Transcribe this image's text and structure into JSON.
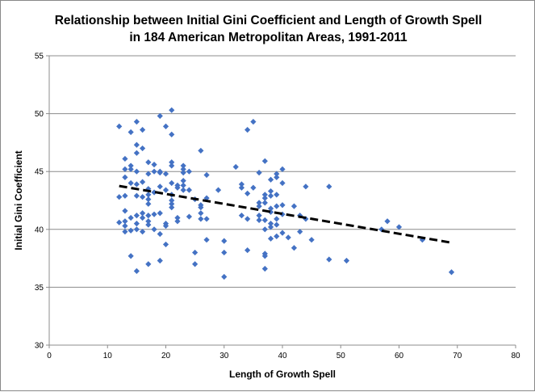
{
  "chart_data": {
    "type": "scatter",
    "title_line1": "Relationship between Initial Gini Coefficient and Length of Growth Spell",
    "title_line2": "in 184 American Metropolitan Areas, 1991-2011",
    "xlabel": "Length of Growth Spell",
    "ylabel": "Initial Gini Coefficient",
    "xlim": [
      0,
      80
    ],
    "ylim": [
      30,
      55
    ],
    "xticks": [
      "0",
      "10",
      "20",
      "30",
      "40",
      "50",
      "60",
      "70",
      "80"
    ],
    "yticks": [
      "30",
      "35",
      "40",
      "45",
      "50",
      "55"
    ],
    "grid": "horizontal",
    "marker_color": "#4472C4",
    "trendline": {
      "style": "dashed",
      "color": "#000000",
      "points": [
        [
          12,
          43.75
        ],
        [
          69,
          38.85
        ]
      ]
    },
    "points": [
      [
        12,
        48.9
      ],
      [
        12,
        42.8
      ],
      [
        12,
        40.6
      ],
      [
        13,
        46.1
      ],
      [
        13,
        45.2
      ],
      [
        13,
        44.5
      ],
      [
        13,
        42.9
      ],
      [
        13,
        41.6
      ],
      [
        13,
        40.7
      ],
      [
        13,
        40.3
      ],
      [
        13,
        39.8
      ],
      [
        14,
        48.4
      ],
      [
        14,
        45.5
      ],
      [
        14,
        45.2
      ],
      [
        14,
        44.0
      ],
      [
        14,
        41.0
      ],
      [
        14,
        37.7
      ],
      [
        14,
        39.9
      ],
      [
        15,
        49.3
      ],
      [
        15,
        47.3
      ],
      [
        15,
        46.6
      ],
      [
        15,
        45.0
      ],
      [
        15,
        43.9
      ],
      [
        15,
        42.9
      ],
      [
        15,
        41.2
      ],
      [
        15,
        40.5
      ],
      [
        15,
        40.0
      ],
      [
        15,
        36.4
      ],
      [
        16,
        48.6
      ],
      [
        16,
        47.0
      ],
      [
        16,
        44.1
      ],
      [
        16,
        42.8
      ],
      [
        16,
        41.4
      ],
      [
        16,
        41.0
      ],
      [
        16,
        39.8
      ],
      [
        17,
        45.8
      ],
      [
        17,
        44.8
      ],
      [
        17,
        43.5
      ],
      [
        17,
        43.0
      ],
      [
        17,
        42.6
      ],
      [
        17,
        42.2
      ],
      [
        17,
        41.2
      ],
      [
        17,
        40.7
      ],
      [
        17,
        40.4
      ],
      [
        17,
        37.0
      ],
      [
        18,
        45.6
      ],
      [
        18,
        45.0
      ],
      [
        18,
        43.2
      ],
      [
        18,
        41.3
      ],
      [
        18,
        40.0
      ],
      [
        19,
        49.8
      ],
      [
        19,
        45.0
      ],
      [
        19,
        44.9
      ],
      [
        19,
        43.7
      ],
      [
        19,
        41.4
      ],
      [
        19,
        39.6
      ],
      [
        19,
        37.3
      ],
      [
        20,
        48.9
      ],
      [
        20,
        44.8
      ],
      [
        20,
        43.4
      ],
      [
        20,
        40.5
      ],
      [
        20,
        40.3
      ],
      [
        20,
        38.7
      ],
      [
        21,
        50.3
      ],
      [
        21,
        48.2
      ],
      [
        21,
        45.8
      ],
      [
        21,
        45.5
      ],
      [
        21,
        44.0
      ],
      [
        21,
        43.0
      ],
      [
        21,
        42.5
      ],
      [
        21,
        42.2
      ],
      [
        21,
        41.9
      ],
      [
        22,
        43.8
      ],
      [
        22,
        43.6
      ],
      [
        22,
        41.0
      ],
      [
        22,
        40.7
      ],
      [
        23,
        45.5
      ],
      [
        23,
        45.2
      ],
      [
        23,
        44.9
      ],
      [
        23,
        44.2
      ],
      [
        23,
        43.8
      ],
      [
        23,
        43.4
      ],
      [
        24,
        45.0
      ],
      [
        24,
        43.4
      ],
      [
        24,
        41.1
      ],
      [
        25,
        42.6
      ],
      [
        25,
        38.0
      ],
      [
        25,
        37.0
      ],
      [
        26,
        46.8
      ],
      [
        26,
        42.1
      ],
      [
        26,
        41.9
      ],
      [
        26,
        41.4
      ],
      [
        26,
        40.9
      ],
      [
        27,
        44.7
      ],
      [
        27,
        42.7
      ],
      [
        27,
        40.9
      ],
      [
        27,
        39.1
      ],
      [
        29,
        43.4
      ],
      [
        30,
        39.0
      ],
      [
        30,
        38.0
      ],
      [
        30,
        35.9
      ],
      [
        32,
        45.4
      ],
      [
        33,
        43.9
      ],
      [
        33,
        43.6
      ],
      [
        33,
        41.2
      ],
      [
        34,
        48.6
      ],
      [
        34,
        43.1
      ],
      [
        34,
        40.9
      ],
      [
        34,
        38.2
      ],
      [
        35,
        49.3
      ],
      [
        35,
        43.6
      ],
      [
        36,
        44.9
      ],
      [
        36,
        42.3
      ],
      [
        36,
        42.0
      ],
      [
        36,
        41.2
      ],
      [
        36,
        40.8
      ],
      [
        37,
        45.9
      ],
      [
        37,
        43.0
      ],
      [
        37,
        42.7
      ],
      [
        37,
        42.3
      ],
      [
        37,
        40.8
      ],
      [
        37,
        40.0
      ],
      [
        37,
        37.9
      ],
      [
        37,
        37.7
      ],
      [
        37,
        36.6
      ],
      [
        38,
        44.3
      ],
      [
        38,
        43.3
      ],
      [
        38,
        42.9
      ],
      [
        38,
        41.8
      ],
      [
        38,
        41.5
      ],
      [
        38,
        40.5
      ],
      [
        38,
        40.2
      ],
      [
        38,
        39.2
      ],
      [
        39,
        44.8
      ],
      [
        39,
        44.5
      ],
      [
        39,
        43.0
      ],
      [
        39,
        42.0
      ],
      [
        39,
        40.9
      ],
      [
        39,
        40.4
      ],
      [
        39,
        39.4
      ],
      [
        40,
        45.2
      ],
      [
        40,
        44.0
      ],
      [
        40,
        42.1
      ],
      [
        40,
        41.3
      ],
      [
        40,
        39.7
      ],
      [
        41,
        39.3
      ],
      [
        42,
        42.0
      ],
      [
        42,
        38.4
      ],
      [
        43,
        41.2
      ],
      [
        43,
        39.8
      ],
      [
        44,
        43.7
      ],
      [
        44,
        40.9
      ],
      [
        45,
        39.1
      ],
      [
        48,
        43.7
      ],
      [
        48,
        37.4
      ],
      [
        51,
        37.3
      ],
      [
        57,
        40.0
      ],
      [
        58,
        40.7
      ],
      [
        60,
        40.2
      ],
      [
        64,
        39.1
      ],
      [
        69,
        36.3
      ]
    ]
  }
}
